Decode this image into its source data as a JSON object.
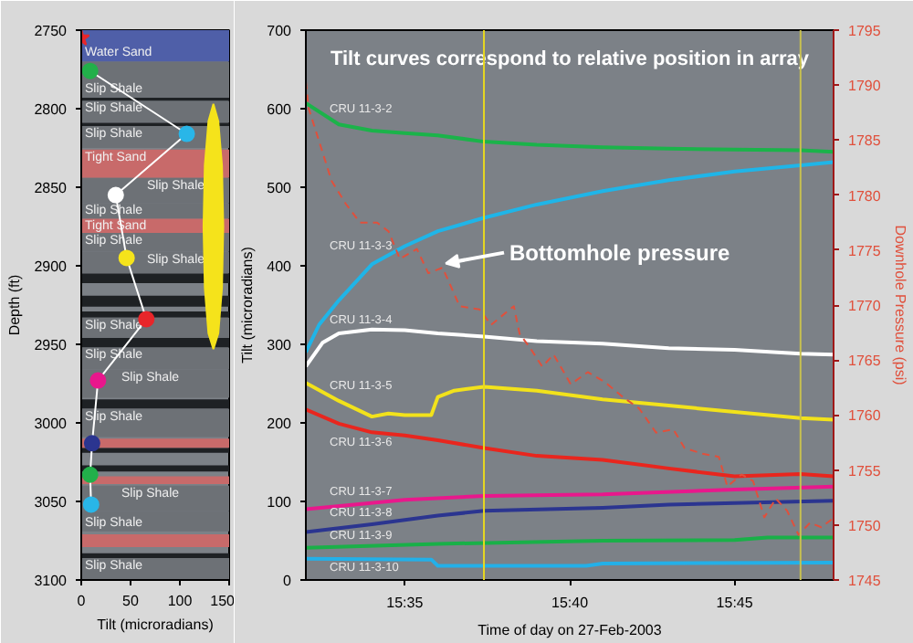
{
  "chart_data": [
    {
      "type": "line",
      "xlabel": "Tilt (microradians)",
      "ylabel": "Depth (ft)",
      "xlim": [
        0,
        150
      ],
      "xticks": [
        0,
        50,
        100,
        150
      ],
      "ylim": [
        3100,
        2750
      ],
      "yticks": [
        2750,
        2800,
        2850,
        2900,
        2950,
        3000,
        3050,
        3100
      ],
      "bands": [
        {
          "axis": "y",
          "from": 2750,
          "to": 2770,
          "label": "Water Sand",
          "color": "#4f5fa8"
        },
        {
          "axis": "y",
          "from": 2770,
          "to": 2793,
          "label": "Slip Shale",
          "color": "#6d7176"
        },
        {
          "axis": "y",
          "from": 2793,
          "to": 2795,
          "label": null,
          "color": "#1e2124"
        },
        {
          "axis": "y",
          "from": 2795,
          "to": 2809,
          "label": "Slip Shale",
          "color": "#6d7176"
        },
        {
          "axis": "y",
          "from": 2809,
          "to": 2811,
          "label": null,
          "color": "#1e2124"
        },
        {
          "axis": "y",
          "from": 2811,
          "to": 2825,
          "label": "Slip Shale",
          "color": "#6d7176"
        },
        {
          "axis": "y",
          "from": 2826,
          "to": 2844,
          "label": "Tight Sand",
          "color": "#c86a6a"
        },
        {
          "axis": "y",
          "from": 2844,
          "to": 2860,
          "label": "Slip Shale",
          "color": "#6d7176"
        },
        {
          "axis": "y",
          "from": 2860,
          "to": 2870,
          "label": "Slip Shale",
          "color": "#6d7176"
        },
        {
          "axis": "y",
          "from": 2870,
          "to": 2879,
          "label": "Tight Sand",
          "color": "#c86a6a"
        },
        {
          "axis": "y",
          "from": 2879,
          "to": 2891,
          "label": "Slip Shale",
          "color": "#6d7176"
        },
        {
          "axis": "y",
          "from": 2891,
          "to": 2905,
          "label": "Slip Shale",
          "color": "#6d7176"
        },
        {
          "axis": "y",
          "from": 2905,
          "to": 2911,
          "label": null,
          "color": "#1e2124"
        },
        {
          "axis": "y",
          "from": 2919,
          "to": 2926,
          "label": null,
          "color": "#1e2124"
        },
        {
          "axis": "y",
          "from": 2929,
          "to": 2933,
          "label": null,
          "color": "#1e2124"
        },
        {
          "axis": "y",
          "from": 2933,
          "to": 2946,
          "label": "Slip Shale",
          "color": "#6d7176"
        },
        {
          "axis": "y",
          "from": 2946,
          "to": 2952,
          "label": null,
          "color": "#1e2124"
        },
        {
          "axis": "y",
          "from": 2952,
          "to": 2966,
          "label": "Slip Shale",
          "color": "#6d7176"
        },
        {
          "axis": "y",
          "from": 2966,
          "to": 2984,
          "label": "Slip Shale",
          "color": "#6d7176"
        },
        {
          "axis": "y",
          "from": 2985,
          "to": 2991,
          "label": null,
          "color": "#1e2124"
        },
        {
          "axis": "y",
          "from": 2991,
          "to": 3009,
          "label": "Slip Shale",
          "color": "#6d7176"
        },
        {
          "axis": "y",
          "from": 3010,
          "to": 3016,
          "label": null,
          "color": "#c86a6a"
        },
        {
          "axis": "y",
          "from": 3016,
          "to": 3019,
          "label": null,
          "color": "#1e2124"
        },
        {
          "axis": "y",
          "from": 3027,
          "to": 3031,
          "label": null,
          "color": "#1e2124"
        },
        {
          "axis": "y",
          "from": 3034,
          "to": 3039,
          "label": null,
          "color": "#c86a6a"
        },
        {
          "axis": "y",
          "from": 3040,
          "to": 3056,
          "label": "Slip Shale",
          "color": "#6d7176"
        },
        {
          "axis": "y",
          "from": 3056,
          "to": 3069,
          "label": "Slip Shale",
          "color": "#6d7176"
        },
        {
          "axis": "y",
          "from": 3071,
          "to": 3079,
          "label": null,
          "color": "#c86a6a"
        },
        {
          "axis": "y",
          "from": 3083,
          "to": 3086,
          "label": null,
          "color": "#1e2124"
        },
        {
          "axis": "y",
          "from": 3086,
          "to": 3100,
          "label": "Slip Shale",
          "color": "#6d7176"
        }
      ],
      "series": [
        {
          "type": "area",
          "color": "#f5e31b",
          "x": [
            144,
            142.7,
            139,
            134,
            129,
            125.3,
            124,
            125.3,
            129,
            134,
            139,
            142.7
          ],
          "values": [
            2875,
            2914,
            2943,
            2953,
            2943,
            2914,
            2875,
            2836,
            2808,
            2797,
            2808,
            2836
          ]
        },
        {
          "type": "line",
          "marker": "circle",
          "color": "#ffffff",
          "colors": [
            "#22b04a",
            "#29b6e8",
            "#ffffff",
            "#f5e31b",
            "#e8262a",
            "#e8168c",
            "#2b3590",
            "#22b04a",
            "#29b6e8"
          ],
          "x": [
            9,
            107,
            35,
            46,
            66,
            17,
            11,
            9,
            10
          ],
          "values": [
            2776,
            2816,
            2855,
            2895,
            2934,
            2973,
            3013,
            3033,
            3052
          ]
        },
        {
          "type": "scatter",
          "marker": "star",
          "color": "#e8262a",
          "x": [
            0
          ],
          "values": [
            2755
          ]
        }
      ]
    },
    {
      "type": "line",
      "title": "Tilt curves correspond to relative position in array",
      "xlabel": "Time of day on 27-Feb-2003",
      "ylabel": "Tilt (microradians)",
      "y2label": "Downhole Pressure (psi)",
      "xlim": [
        15.5333,
        15.8
      ],
      "xticks": [
        {
          "value": 15.5833,
          "label": "15:35"
        },
        {
          "value": 15.6667,
          "label": "15:40"
        },
        {
          "value": 15.75,
          "label": "15:45"
        }
      ],
      "ylim": [
        0,
        700
      ],
      "yticks": [
        0,
        100,
        200,
        300,
        400,
        500,
        600,
        700
      ],
      "y2lim": [
        1745,
        1795
      ],
      "y2ticks": [
        1745,
        1750,
        1755,
        1760,
        1765,
        1770,
        1775,
        1780,
        1785,
        1790,
        1795
      ],
      "ref_lines": [
        {
          "axis": "x",
          "value": 15.6233,
          "color": "#e8d820"
        },
        {
          "axis": "x",
          "value": 15.7833,
          "color": "#c8c050"
        }
      ],
      "annotations": [
        {
          "text": "Bottomhole pressure",
          "x": 15.604,
          "y": 403
        }
      ],
      "series": [
        {
          "name": "CRU 11-3-2",
          "color": "#1bb34a",
          "x": [
            15.5333,
            15.55,
            15.5667,
            15.5833,
            15.6,
            15.6233,
            15.65,
            15.6833,
            15.7167,
            15.75,
            15.7833,
            15.8
          ],
          "values": [
            607,
            580,
            572,
            569,
            566,
            558,
            554,
            551,
            549,
            548,
            547,
            545
          ]
        },
        {
          "name": "CRU 11-3-3",
          "color": "#1fb5e8",
          "x": [
            15.5333,
            15.54,
            15.55,
            15.5667,
            15.5833,
            15.6,
            15.6233,
            15.65,
            15.6833,
            15.7167,
            15.75,
            15.7833,
            15.8
          ],
          "values": [
            290,
            325,
            356,
            402,
            425,
            444,
            461,
            478,
            495,
            509,
            520,
            528,
            532
          ]
        },
        {
          "name": "CRU 11-3-4",
          "color": "#ffffff",
          "x": [
            15.5333,
            15.5417,
            15.55,
            15.5667,
            15.5833,
            15.6,
            15.6233,
            15.65,
            15.6833,
            15.7167,
            15.75,
            15.7833,
            15.8
          ],
          "values": [
            272,
            302,
            314,
            319,
            318,
            314,
            310,
            304,
            301,
            295,
            293,
            288,
            287
          ]
        },
        {
          "name": "CRU 11-3-5",
          "color": "#f2e21b",
          "x": [
            15.5333,
            15.55,
            15.5667,
            15.575,
            15.5833,
            15.5967,
            15.6,
            15.6083,
            15.6233,
            15.65,
            15.6833,
            15.7167,
            15.75,
            15.7833,
            15.8
          ],
          "values": [
            251,
            228,
            208,
            212,
            210,
            210,
            233,
            241,
            246,
            241,
            230,
            222,
            214,
            206,
            204
          ]
        },
        {
          "name": "CRU 11-3-6",
          "color": "#e8261e",
          "x": [
            15.5333,
            15.55,
            15.5667,
            15.5833,
            15.6,
            15.6233,
            15.65,
            15.6833,
            15.7167,
            15.75,
            15.7833,
            15.8
          ],
          "values": [
            217,
            199,
            188,
            184,
            178,
            168,
            158,
            153,
            142,
            132,
            135,
            132
          ]
        },
        {
          "name": "CRU 11-3-7",
          "color": "#e8188c",
          "x": [
            15.5333,
            15.5833,
            15.6233,
            15.6833,
            15.75,
            15.8
          ],
          "values": [
            90,
            102,
            107,
            109,
            115,
            119
          ]
        },
        {
          "name": "CRU 11-3-8",
          "color": "#2b3590",
          "x": [
            15.5333,
            15.5667,
            15.6,
            15.6233,
            15.6833,
            15.7167,
            15.75,
            15.8
          ],
          "values": [
            61,
            71,
            82,
            88,
            92,
            96,
            98,
            101
          ]
        },
        {
          "name": "CRU 11-3-9",
          "color": "#19b048",
          "x": [
            15.5333,
            15.6,
            15.6833,
            15.75,
            15.7667,
            15.8
          ],
          "values": [
            41,
            46,
            50,
            51,
            54,
            54
          ]
        },
        {
          "name": "CRU 11-3-10",
          "color": "#23b0e8",
          "x": [
            15.5333,
            15.5967,
            15.6,
            15.675,
            15.6833,
            15.8
          ],
          "values": [
            27,
            26,
            18,
            18,
            21,
            22
          ]
        },
        {
          "axis": "y2",
          "line_style": "dashed",
          "color": "#e0503c",
          "x": [
            15.5333,
            15.5347,
            15.5463,
            15.5535,
            15.5607,
            15.5693,
            15.5751,
            15.5808,
            15.5894,
            15.5952,
            15.6024,
            15.611,
            15.6211,
            15.6269,
            15.6384,
            15.6413,
            15.647,
            15.6528,
            15.6585,
            15.6672,
            15.6758,
            15.6844,
            15.6931,
            15.7017,
            15.7103,
            15.719,
            15.7247,
            15.7334,
            15.742,
            15.7463,
            15.7535,
            15.7593,
            15.765,
            15.7708,
            15.7765,
            15.7823,
            15.7881,
            15.7938,
            15.799
          ],
          "values": [
            1790.3,
            1787.9,
            1781.3,
            1779.2,
            1777.5,
            1777.5,
            1776.7,
            1774.2,
            1775.1,
            1772.9,
            1773.4,
            1769.9,
            1769.6,
            1768.2,
            1769.9,
            1767.4,
            1766,
            1764.4,
            1765.5,
            1762.8,
            1763.9,
            1763,
            1761.7,
            1760.6,
            1758.4,
            1758.7,
            1757,
            1756.5,
            1756.2,
            1753.5,
            1754.6,
            1754,
            1750.7,
            1752.4,
            1751.3,
            1749.1,
            1750.2,
            1749.8,
            1750.5
          ]
        }
      ]
    }
  ]
}
